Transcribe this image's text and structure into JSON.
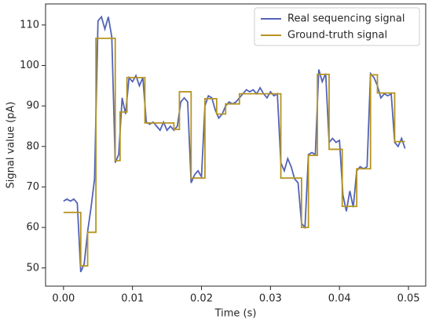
{
  "chart_data": {
    "type": "line",
    "xlabel": "Time (s)",
    "ylabel": "Signal value (pA)",
    "xlim": [
      -0.0026,
      0.0525
    ],
    "ylim": [
      45.5,
      115.2
    ],
    "xticks": [
      {
        "value": 0,
        "label": "0.00"
      },
      {
        "value": 0.01,
        "label": "0.01"
      },
      {
        "value": 0.02,
        "label": "0.02"
      },
      {
        "value": 0.03,
        "label": "0.03"
      },
      {
        "value": 0.04,
        "label": "0.04"
      },
      {
        "value": 0.05,
        "label": "0.05"
      }
    ],
    "yticks": [
      50,
      60,
      70,
      80,
      90,
      100,
      110
    ],
    "legend": "upper right",
    "series": [
      {
        "name": "Real sequencing signal",
        "color": "#5363b8",
        "x": [
          0,
          0.0005,
          0.001,
          0.0015,
          0.002,
          0.0025,
          0.003,
          0.0035,
          0.004,
          0.0045,
          0.005,
          0.0055,
          0.006,
          0.0065,
          0.007,
          0.0075,
          0.008,
          0.0085,
          0.009,
          0.0095,
          0.01,
          0.0105,
          0.011,
          0.0115,
          0.012,
          0.0125,
          0.013,
          0.0135,
          0.014,
          0.0145,
          0.015,
          0.0155,
          0.016,
          0.0165,
          0.017,
          0.0175,
          0.018,
          0.0185,
          0.019,
          0.0195,
          0.02,
          0.0205,
          0.021,
          0.0215,
          0.022,
          0.0225,
          0.023,
          0.0235,
          0.024,
          0.0245,
          0.025,
          0.0255,
          0.026,
          0.0265,
          0.027,
          0.0275,
          0.028,
          0.0285,
          0.029,
          0.0295,
          0.03,
          0.0305,
          0.031,
          0.0315,
          0.032,
          0.0325,
          0.033,
          0.0335,
          0.034,
          0.0345,
          0.035,
          0.0355,
          0.036,
          0.0365,
          0.037,
          0.0375,
          0.038,
          0.0385,
          0.039,
          0.0395,
          0.04,
          0.0405,
          0.041,
          0.0415,
          0.042,
          0.0425,
          0.043,
          0.0435,
          0.044,
          0.0445,
          0.045,
          0.0455,
          0.046,
          0.0465,
          0.047,
          0.0475,
          0.048,
          0.0485,
          0.049,
          0.0495
        ],
        "values": [
          66.5,
          67,
          66.5,
          67,
          66,
          49,
          51,
          59,
          65,
          72,
          111,
          112,
          109,
          112,
          107,
          76,
          78,
          92,
          88,
          97,
          96,
          97.5,
          95,
          97,
          86,
          85.5,
          86,
          85,
          84,
          86,
          84,
          85,
          84,
          85,
          91,
          92,
          91,
          71,
          73,
          74,
          72.5,
          90,
          92.5,
          92,
          89,
          87,
          88,
          90,
          91,
          90.5,
          91,
          92,
          93,
          94,
          93.5,
          94,
          93,
          94.5,
          93,
          92,
          93.5,
          92.5,
          93,
          76,
          74,
          77,
          75,
          72,
          71,
          61,
          60,
          78,
          78.5,
          78,
          99,
          96,
          98,
          81,
          82,
          81,
          81.5,
          68,
          64,
          69,
          65,
          74,
          75,
          74.5,
          75,
          98,
          97,
          95,
          92,
          93,
          92.5,
          93,
          81,
          80,
          82,
          79.5
        ]
      },
      {
        "name": "Ground-truth signal",
        "color": "#b5951f",
        "x": [
          0,
          0.0025,
          0.0025,
          0.0035,
          0.0035,
          0.0047,
          0.0047,
          0.0075,
          0.0075,
          0.0082,
          0.0082,
          0.0092,
          0.0092,
          0.0118,
          0.0118,
          0.016,
          0.016,
          0.0168,
          0.0168,
          0.0185,
          0.0185,
          0.0205,
          0.0205,
          0.0222,
          0.0222,
          0.0235,
          0.0235,
          0.0255,
          0.0255,
          0.0315,
          0.0315,
          0.0345,
          0.0345,
          0.0355,
          0.0355,
          0.0368,
          0.0368,
          0.0385,
          0.0385,
          0.0404,
          0.0404,
          0.0425,
          0.0425,
          0.0445,
          0.0445,
          0.0455,
          0.0455,
          0.048,
          0.048,
          0.0495
        ],
        "values": [
          63.7,
          63.7,
          50.5,
          50.5,
          58.8,
          58.8,
          106.7,
          106.7,
          76.5,
          76.5,
          88.5,
          88.5,
          97,
          97,
          85.8,
          85.8,
          84.2,
          84.2,
          93.5,
          93.5,
          72.2,
          72.2,
          91.8,
          91.8,
          88,
          88,
          90.5,
          90.5,
          93,
          93,
          72.2,
          72.2,
          60,
          60,
          77.8,
          77.8,
          97.8,
          97.8,
          79.3,
          79.3,
          65.2,
          65.2,
          74.5,
          74.5,
          97.7,
          97.7,
          93.2,
          93.2,
          81.2,
          81.2
        ]
      }
    ]
  }
}
